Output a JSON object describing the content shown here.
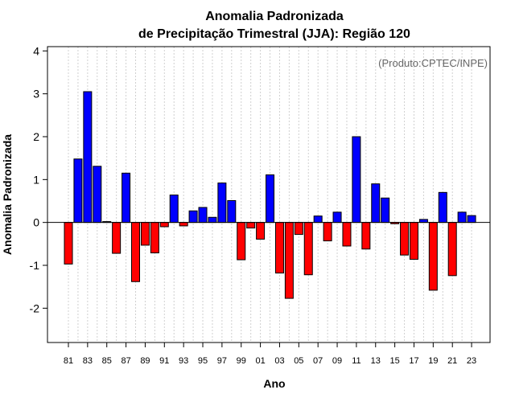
{
  "chart_data": {
    "type": "bar",
    "title_line1": "Anomalia Padronizada",
    "title_line2": "de Precipitação Trimestral (JJA): Região 120",
    "source_note": "(Produto:CPTEC/INPE)",
    "xlabel": "Ano",
    "ylabel": "Anomalia Padronizada",
    "ylim": [
      -2.8,
      4.1
    ],
    "yticks": [
      -2,
      -1,
      0,
      1,
      2,
      3,
      4
    ],
    "xtick_labels": [
      "81",
      "83",
      "85",
      "87",
      "89",
      "91",
      "93",
      "95",
      "97",
      "99",
      "01",
      "03",
      "05",
      "07",
      "09",
      "11",
      "13",
      "15",
      "17",
      "19",
      "21",
      "23"
    ],
    "categories": [
      "1981",
      "1982",
      "1983",
      "1984",
      "1985",
      "1986",
      "1987",
      "1988",
      "1989",
      "1990",
      "1991",
      "1992",
      "1993",
      "1994",
      "1995",
      "1996",
      "1997",
      "1998",
      "1999",
      "2000",
      "2001",
      "2002",
      "2003",
      "2004",
      "2005",
      "2006",
      "2007",
      "2008",
      "2009",
      "2010",
      "2011",
      "2012",
      "2013",
      "2014",
      "2015",
      "2016",
      "2017",
      "2018",
      "2019",
      "2020",
      "2021",
      "2022",
      "2023"
    ],
    "values": [
      -0.97,
      1.48,
      3.05,
      1.31,
      0.02,
      -0.72,
      1.15,
      -1.38,
      -0.53,
      -0.71,
      -0.1,
      0.64,
      -0.08,
      0.27,
      0.35,
      0.12,
      0.92,
      0.51,
      -0.87,
      -0.13,
      -0.39,
      1.11,
      -1.18,
      -1.77,
      -0.28,
      -1.22,
      0.15,
      -0.43,
      0.24,
      -0.55,
      2.0,
      -0.62,
      0.9,
      0.57,
      -0.03,
      -0.76,
      -0.86,
      0.07,
      -1.58,
      0.7,
      -1.24,
      0.24,
      0.16
    ],
    "colors": {
      "positive": "#0000ff",
      "negative": "#ff0000",
      "grid": "#d0d0d0",
      "zero_line": "#000000"
    },
    "grid": true
  }
}
